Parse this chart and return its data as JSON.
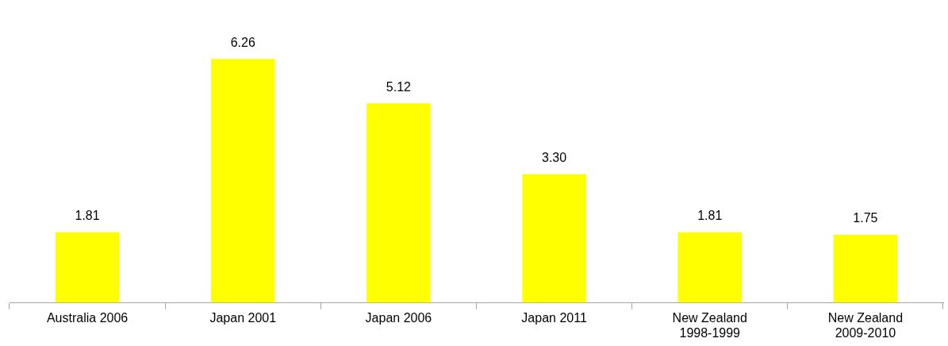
{
  "chart_data": {
    "type": "bar",
    "categories": [
      "Australia 2006",
      "Japan 2001",
      "Japan 2006",
      "Japan 2011",
      "New Zealand\n1998-1999",
      "New Zealand\n2009-2010"
    ],
    "values": [
      1.81,
      6.26,
      5.12,
      3.3,
      1.81,
      1.75
    ],
    "color": "#ffff00",
    "value_labels": [
      "1.81",
      "6.26",
      "5.12",
      "3.30",
      "1.81",
      "1.75"
    ],
    "tick_labels": "x"
  }
}
